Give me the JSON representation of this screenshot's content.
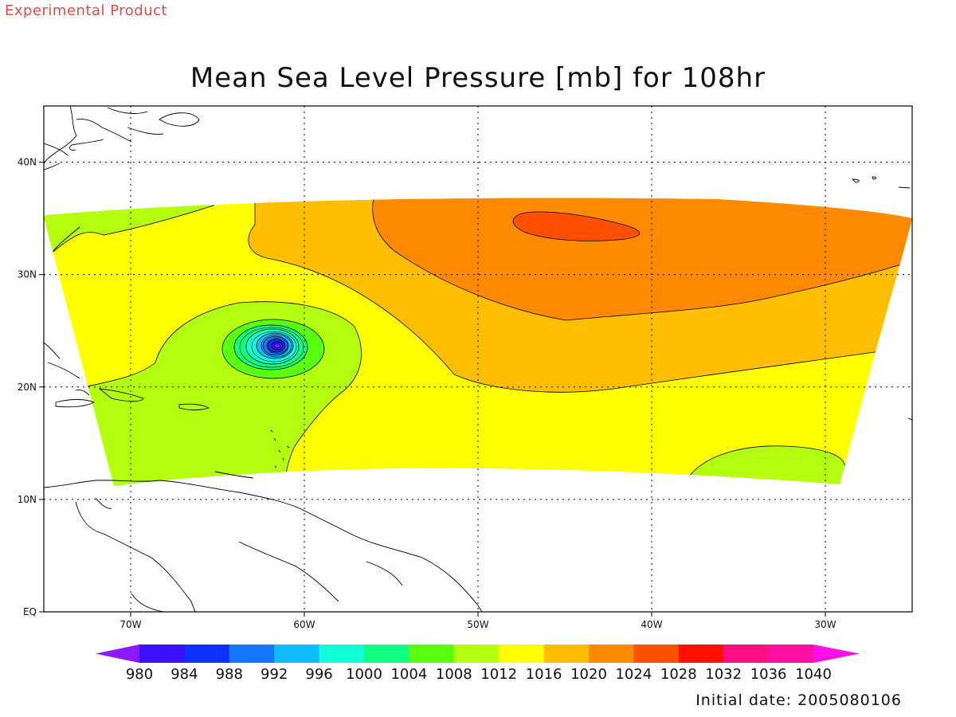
{
  "header": {
    "product_label": "Experimental Product",
    "title": "Mean Sea Level Pressure [mb] for 108hr"
  },
  "footer": {
    "initial_date": "Initial date: 2005080106"
  },
  "map": {
    "extent": {
      "lon_min": -75,
      "lon_max": -25,
      "lat_min": 0,
      "lat_max": 45
    },
    "lon_ticks": [
      {
        "value": -70,
        "label": "70W"
      },
      {
        "value": -60,
        "label": "60W"
      },
      {
        "value": -50,
        "label": "50W"
      },
      {
        "value": -40,
        "label": "40W"
      },
      {
        "value": -30,
        "label": "30W"
      }
    ],
    "lat_ticks": [
      {
        "value": 0,
        "label": "EQ"
      },
      {
        "value": 10,
        "label": "10N"
      },
      {
        "value": 20,
        "label": "20N"
      },
      {
        "value": 30,
        "label": "30N"
      },
      {
        "value": 40,
        "label": "40N"
      }
    ],
    "grid_lines": "dotted",
    "storm_center": {
      "lon": -61.7,
      "lat": 23.6,
      "min_pressure_below": 980
    }
  },
  "colorbar": {
    "levels": [
      980,
      984,
      988,
      992,
      996,
      1000,
      1004,
      1008,
      1012,
      1016,
      1020,
      1024,
      1028,
      1032,
      1036,
      1040
    ],
    "colors": [
      "#8c1aff",
      "#3a10ff",
      "#1030ff",
      "#1478ff",
      "#10bcff",
      "#10ffd8",
      "#10ff80",
      "#5aff10",
      "#b4ff10",
      "#ffff00",
      "#ffbe00",
      "#ff8a00",
      "#ff5000",
      "#ff1000",
      "#ff1080",
      "#ff10a0",
      "#ff10e6"
    ]
  }
}
